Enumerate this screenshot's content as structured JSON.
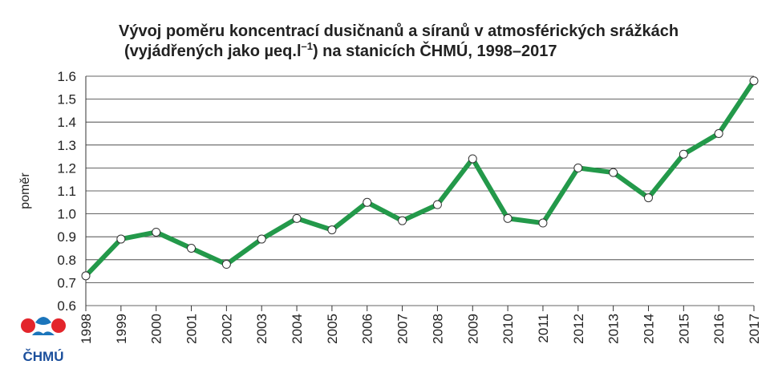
{
  "chart_data": {
    "type": "line",
    "title": {
      "line1": "Vývoj poměru koncentrací dusičnanů a síranů v atmosférických srážkách",
      "line2_start": "(vyjádřených jako µeq.l",
      "line2_superscript": "–1",
      "line2_end": ") na stanicích ČHMÚ, 1998–2017"
    },
    "y_label": "poměr",
    "logo_text": "ČHMÚ",
    "categories": [
      "1998",
      "1999",
      "2000",
      "2001",
      "2002",
      "2003",
      "2004",
      "2005",
      "2006",
      "2007",
      "2008",
      "2009",
      "2010",
      "2011",
      "2012",
      "2013",
      "2014",
      "2015",
      "2016",
      "2017"
    ],
    "series": [
      {
        "color": "#23994a",
        "values": [
          0.73,
          0.89,
          0.92,
          0.85,
          0.78,
          0.89,
          0.98,
          0.93,
          1.05,
          0.97,
          1.04,
          1.24,
          0.98,
          0.96,
          1.2,
          1.18,
          1.07,
          1.26,
          1.35,
          1.58
        ]
      }
    ],
    "ylim": [
      0.6,
      1.6
    ],
    "yticks": [
      0.6,
      0.7,
      0.8,
      0.9,
      {
        "value": 1,
        "label": "1.0"
      },
      1.1,
      1.2,
      1.3,
      1.4,
      1.5,
      1.6
    ],
    "grid": true
  }
}
